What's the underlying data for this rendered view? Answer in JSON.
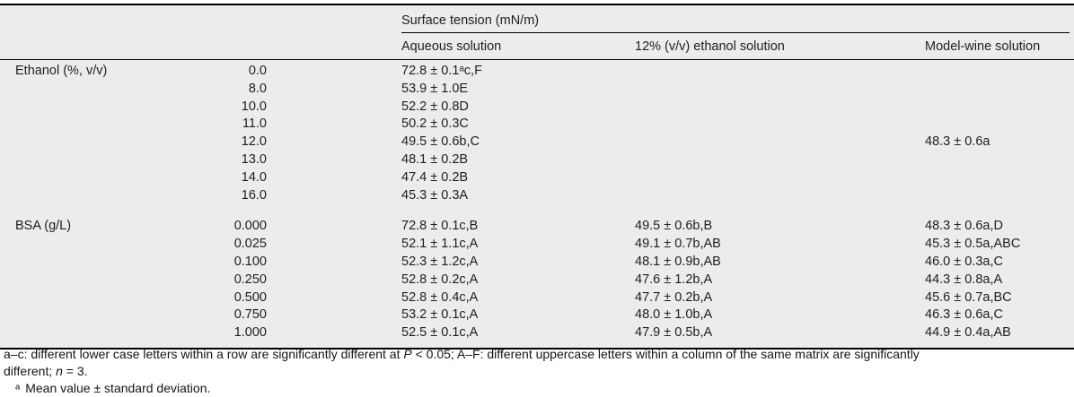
{
  "table": {
    "spanner": "Surface tension (mN/m)",
    "columns": [
      "Aqueous solution",
      "12% (v/v) ethanol solution",
      "Model-wine solution"
    ],
    "sections": [
      {
        "label": "Ethanol (%, v/v)",
        "rows": [
          {
            "dose": "0.0",
            "aqueous": "72.8 ± 0.1ᵃc,F",
            "ethanol12": "",
            "modelwine": ""
          },
          {
            "dose": "8.0",
            "aqueous": "53.9 ± 1.0E",
            "ethanol12": "",
            "modelwine": ""
          },
          {
            "dose": "10.0",
            "aqueous": "52.2 ± 0.8D",
            "ethanol12": "",
            "modelwine": ""
          },
          {
            "dose": "11.0",
            "aqueous": "50.2 ± 0.3C",
            "ethanol12": "",
            "modelwine": ""
          },
          {
            "dose": "12.0",
            "aqueous": "49.5 ± 0.6b,C",
            "ethanol12": "",
            "modelwine": "48.3 ± 0.6a"
          },
          {
            "dose": "13.0",
            "aqueous": "48.1 ± 0.2B",
            "ethanol12": "",
            "modelwine": ""
          },
          {
            "dose": "14.0",
            "aqueous": "47.4 ± 0.2B",
            "ethanol12": "",
            "modelwine": ""
          },
          {
            "dose": "16.0",
            "aqueous": "45.3 ± 0.3A",
            "ethanol12": "",
            "modelwine": ""
          }
        ]
      },
      {
        "label": "BSA (g/L)",
        "rows": [
          {
            "dose": "0.000",
            "aqueous": "72.8 ± 0.1c,B",
            "ethanol12": "49.5 ± 0.6b,B",
            "modelwine": "48.3 ± 0.6a,D"
          },
          {
            "dose": "0.025",
            "aqueous": "52.1 ± 1.1c,A",
            "ethanol12": "49.1 ± 0.7b,AB",
            "modelwine": "45.3 ± 0.5a,ABC"
          },
          {
            "dose": "0.100",
            "aqueous": "52.3 ± 1.2c,A",
            "ethanol12": "48.1 ± 0.9b,AB",
            "modelwine": "46.0 ± 0.3a,C"
          },
          {
            "dose": "0.250",
            "aqueous": "52.8 ± 0.2c,A",
            "ethanol12": "47.6 ± 1.2b,A",
            "modelwine": "44.3 ± 0.8a,A"
          },
          {
            "dose": "0.500",
            "aqueous": "52.8 ± 0.4c,A",
            "ethanol12": "47.7 ± 0.2b,A",
            "modelwine": "45.6 ± 0.7a,BC"
          },
          {
            "dose": "0.750",
            "aqueous": "53.2 ± 0.1c,A",
            "ethanol12": "48.0 ± 1.0b,A",
            "modelwine": "46.3 ± 0.6a,C"
          },
          {
            "dose": "1.000",
            "aqueous": "52.5 ± 0.1c,A",
            "ethanol12": "47.9 ± 0.5b,A",
            "modelwine": "44.9 ± 0.4a,AB"
          }
        ]
      }
    ]
  },
  "footnotes": {
    "line1_pre": "a–c: different lower case letters within a row are significantly different at ",
    "line1_italic": "P",
    "line1_post": " < 0.05; A–F: different uppercase letters within a column of the same matrix are significantly",
    "line2_pre": "different; ",
    "line2_italic": "n",
    "line2_post": " = 3.",
    "note_marker": "ᵃ",
    "note_text": "Mean value ± standard deviation."
  },
  "colors": {
    "table_bg": "#ececec",
    "rule": "#000000",
    "text": "#1c1e24"
  }
}
